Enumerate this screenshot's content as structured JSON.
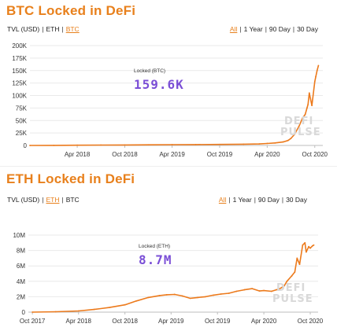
{
  "chart_data": [
    {
      "type": "line",
      "title": "BTC Locked in DeFi",
      "unit_tabs": [
        "TVL (USD)",
        "ETH",
        "BTC"
      ],
      "unit_active": "BTC",
      "range_tabs": [
        "All",
        "1 Year",
        "90 Day",
        "30 Day"
      ],
      "range_active": "All",
      "readout_label": "Locked (BTC)",
      "readout_value": "159.6K",
      "xlim": [
        "2017-10-01",
        "2020-11-01"
      ],
      "ylim": [
        0,
        200000
      ],
      "x_ticks": [
        "2018-04-01",
        "2018-10-01",
        "2019-04-01",
        "2019-10-01",
        "2020-04-01",
        "2020-10-01"
      ],
      "x_tick_labels": [
        "Apr 2018",
        "Oct 2018",
        "Apr 2019",
        "Oct 2019",
        "Apr 2020",
        "Oct 2020"
      ],
      "y_ticks": [
        0,
        25000,
        50000,
        75000,
        100000,
        125000,
        150000,
        175000,
        200000
      ],
      "y_tick_labels": [
        "0",
        "25K",
        "50K",
        "75K",
        "100K",
        "125K",
        "150K",
        "175K",
        "200K"
      ],
      "grid": true,
      "series": [
        {
          "color": "#ec7a1c",
          "x": [
            "2017-10-01",
            "2018-01-01",
            "2018-04-01",
            "2018-07-01",
            "2018-10-01",
            "2019-01-01",
            "2019-04-01",
            "2019-07-01",
            "2019-10-01",
            "2020-01-01",
            "2020-03-01",
            "2020-04-01",
            "2020-05-01",
            "2020-06-01",
            "2020-06-20",
            "2020-07-01",
            "2020-07-15",
            "2020-08-01",
            "2020-08-15",
            "2020-08-25",
            "2020-09-01",
            "2020-09-05",
            "2020-09-10",
            "2020-09-20",
            "2020-10-01",
            "2020-10-05",
            "2020-10-10",
            "2020-10-15"
          ],
          "y": [
            0,
            200,
            500,
            800,
            1000,
            1200,
            1500,
            1800,
            2000,
            2500,
            3000,
            4000,
            5000,
            7000,
            10000,
            14000,
            22000,
            38000,
            55000,
            62000,
            75000,
            82000,
            105000,
            80000,
            128000,
            138000,
            150000,
            160000
          ]
        }
      ]
    },
    {
      "type": "line",
      "title": "ETH Locked in DeFi",
      "unit_tabs": [
        "TVL (USD)",
        "ETH",
        "BTC"
      ],
      "unit_active": "ETH",
      "range_tabs": [
        "All",
        "1 Year",
        "90 Day",
        "30 Day"
      ],
      "range_active": "All",
      "readout_label": "Locked (ETH)",
      "readout_value": "8.7M",
      "xlim": [
        "2017-09-15",
        "2020-11-01"
      ],
      "ylim": [
        0,
        10000000
      ],
      "x_ticks": [
        "2017-10-01",
        "2018-04-01",
        "2018-10-01",
        "2019-04-01",
        "2019-10-01",
        "2020-04-01",
        "2020-10-01"
      ],
      "x_tick_labels": [
        "Oct 2017",
        "Apr 2018",
        "Oct 2018",
        "Apr 2019",
        "Oct 2019",
        "Apr 2020",
        "Oct 2020"
      ],
      "y_ticks": [
        0,
        2000000,
        4000000,
        6000000,
        8000000,
        10000000
      ],
      "y_tick_labels": [
        "0",
        "2M",
        "4M",
        "6M",
        "8M",
        "10M"
      ],
      "grid": true,
      "series": [
        {
          "color": "#ec7a1c",
          "x": [
            "2017-10-01",
            "2018-01-01",
            "2018-04-01",
            "2018-06-01",
            "2018-08-01",
            "2018-10-01",
            "2018-11-15",
            "2019-01-01",
            "2019-02-15",
            "2019-03-15",
            "2019-04-15",
            "2019-05-15",
            "2019-06-15",
            "2019-07-15",
            "2019-08-15",
            "2019-09-15",
            "2019-10-15",
            "2019-11-15",
            "2019-12-15",
            "2020-01-15",
            "2020-02-15",
            "2020-03-15",
            "2020-04-01",
            "2020-05-01",
            "2020-05-20",
            "2020-06-01",
            "2020-06-20",
            "2020-07-01",
            "2020-07-20",
            "2020-08-01",
            "2020-08-10",
            "2020-08-20",
            "2020-09-01",
            "2020-09-10",
            "2020-09-15",
            "2020-09-25",
            "2020-10-01",
            "2020-10-10",
            "2020-10-15"
          ],
          "y": [
            0,
            50000,
            150000,
            350000,
            600000,
            950000,
            1450000,
            1900000,
            2150000,
            2250000,
            2300000,
            2100000,
            1800000,
            1900000,
            2000000,
            2200000,
            2350000,
            2450000,
            2700000,
            2900000,
            3050000,
            2750000,
            2800000,
            2700000,
            2900000,
            3000000,
            3400000,
            4000000,
            4700000,
            5200000,
            7000000,
            6200000,
            8700000,
            9000000,
            7800000,
            8500000,
            8300000,
            8600000,
            8700000
          ]
        }
      ]
    }
  ],
  "watermark": {
    "line1": "DEFI",
    "line2": "PULSE"
  }
}
